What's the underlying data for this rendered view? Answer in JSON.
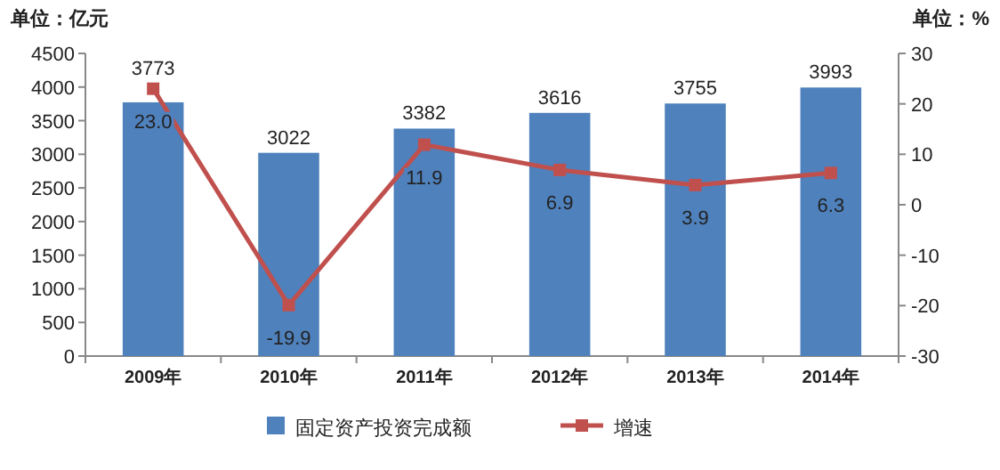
{
  "chart_data": {
    "type": "bar",
    "categories": [
      "2009年",
      "2010年",
      "2011年",
      "2012年",
      "2013年",
      "2014年"
    ],
    "ylabel": "单位：亿元",
    "y2label": "单位：%",
    "ylim": [
      0,
      4500
    ],
    "yticks": [
      0,
      500,
      1000,
      1500,
      2000,
      2500,
      3000,
      3500,
      4000,
      4500
    ],
    "y2lim": [
      -30,
      30
    ],
    "y2ticks": [
      -30,
      -20,
      -10,
      0,
      10,
      20,
      30
    ],
    "series": [
      {
        "name": "固定资产投资完成额",
        "color": "#4f81bd",
        "values": [
          3773,
          3022,
          3382,
          3616,
          3755,
          3993
        ],
        "value_labels": [
          "3773",
          "3022",
          "3382",
          "3616",
          "3755",
          "3993"
        ]
      },
      {
        "name": "增速",
        "type": "line",
        "axis": "y2",
        "color": "#c0504d",
        "marker": "square",
        "values": [
          23.0,
          -19.9,
          11.9,
          6.9,
          3.9,
          6.3
        ],
        "value_labels": [
          "23.0",
          "-19.9",
          "11.9",
          "6.9",
          "3.9",
          "6.3"
        ]
      }
    ],
    "legend": "bottom",
    "grid": false
  }
}
